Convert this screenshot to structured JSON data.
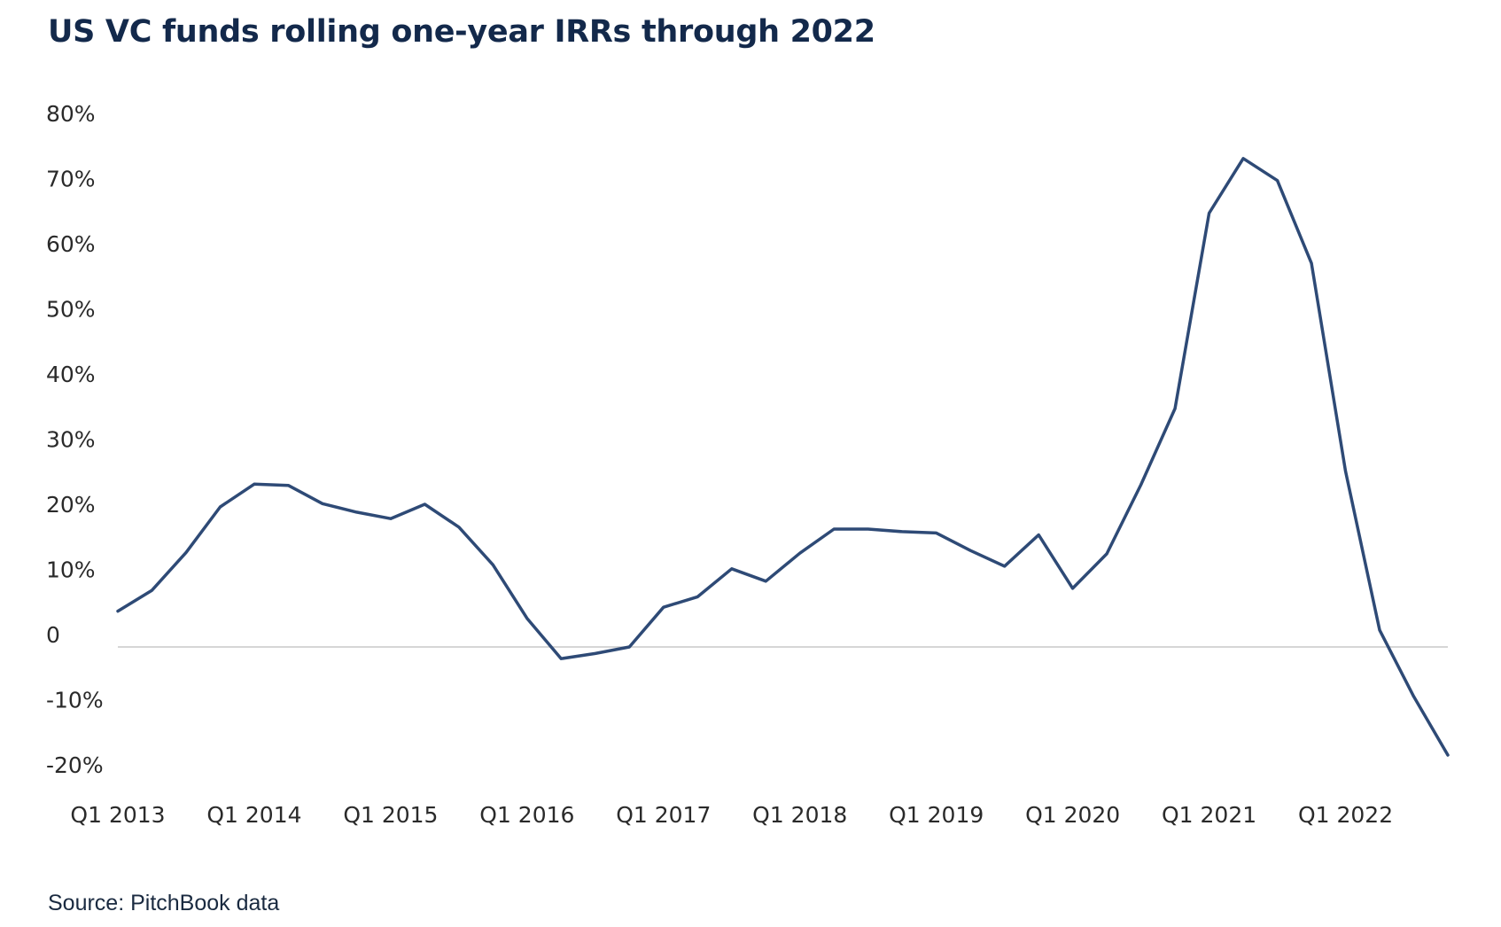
{
  "chart_data": {
    "type": "line",
    "title": "US VC funds rolling one-year IRRs through 2022",
    "source": "Source: PitchBook data",
    "xlabel": "",
    "ylabel": "",
    "ylim": [
      -20,
      80
    ],
    "y_ticks": [
      "80%",
      "70%",
      "60%",
      "50%",
      "40%",
      "30%",
      "20%",
      "10%",
      "0",
      "-10%",
      "-20%"
    ],
    "y_tick_values": [
      80,
      70,
      60,
      50,
      40,
      30,
      20,
      10,
      0,
      -10,
      -20
    ],
    "x_tick_labels": [
      "Q1 2013",
      "Q1 2014",
      "Q1 2015",
      "Q1 2016",
      "Q1 2017",
      "Q1 2018",
      "Q1 2019",
      "Q1 2020",
      "Q1 2021",
      "Q1 2022"
    ],
    "x_tick_indices": [
      0,
      4,
      8,
      12,
      16,
      20,
      24,
      28,
      32,
      36
    ],
    "line_color": "#2e4a76",
    "zero_line_color": "#c8c8c8",
    "series": [
      {
        "name": "Rolling one-year IRR",
        "values": [
          5.5,
          8.7,
          14.5,
          21.5,
          25.0,
          24.8,
          22.0,
          20.7,
          19.7,
          21.9,
          18.4,
          12.6,
          4.4,
          -1.8,
          -1.0,
          0.0,
          6.1,
          7.7,
          12.0,
          10.1,
          14.4,
          18.1,
          18.1,
          17.7,
          17.5,
          14.8,
          12.4,
          17.2,
          9.0,
          14.3,
          24.9,
          36.6,
          66.6,
          75.0,
          71.6,
          58.9,
          27.0,
          2.6,
          -7.6,
          -16.6
        ]
      }
    ]
  }
}
